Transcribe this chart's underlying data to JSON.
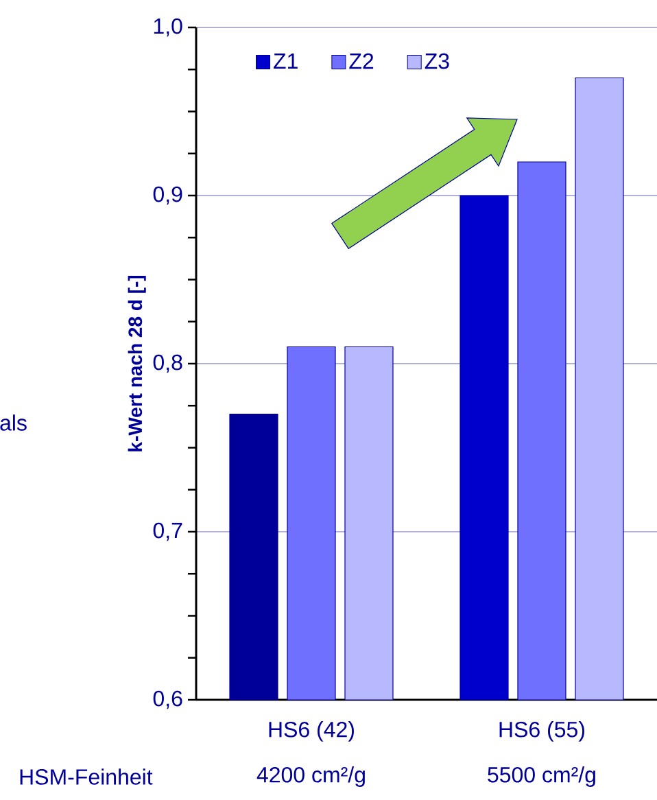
{
  "chart_data": {
    "type": "bar",
    "ylabel": "k-Wert nach 28 d [-]",
    "categories": [
      "HS6 (42)",
      "HS6 (55)"
    ],
    "series": [
      {
        "name": "Z1",
        "color": "#0000cc",
        "colors": [
          "#000099",
          "#0000cc"
        ],
        "values": [
          0.77,
          0.9
        ]
      },
      {
        "name": "Z2",
        "color": "#7070ff",
        "values": [
          0.81,
          0.92
        ]
      },
      {
        "name": "Z3",
        "color": "#b8b8ff",
        "values": [
          0.81,
          0.97
        ]
      }
    ],
    "ylim": [
      0.6,
      1.0
    ],
    "yticks": [
      {
        "value": 0.6,
        "label": "0,6"
      },
      {
        "value": 0.7,
        "label": "0,7"
      },
      {
        "value": 0.8,
        "label": "0,8"
      },
      {
        "value": 0.9,
        "label": "0,9"
      },
      {
        "value": 1.0,
        "label": "1,0"
      }
    ],
    "grid": "y",
    "legend": "top",
    "annotations": [
      "als",
      "HSM-Feinheit",
      "4200 cm²/g",
      "5500 cm²/g"
    ]
  }
}
